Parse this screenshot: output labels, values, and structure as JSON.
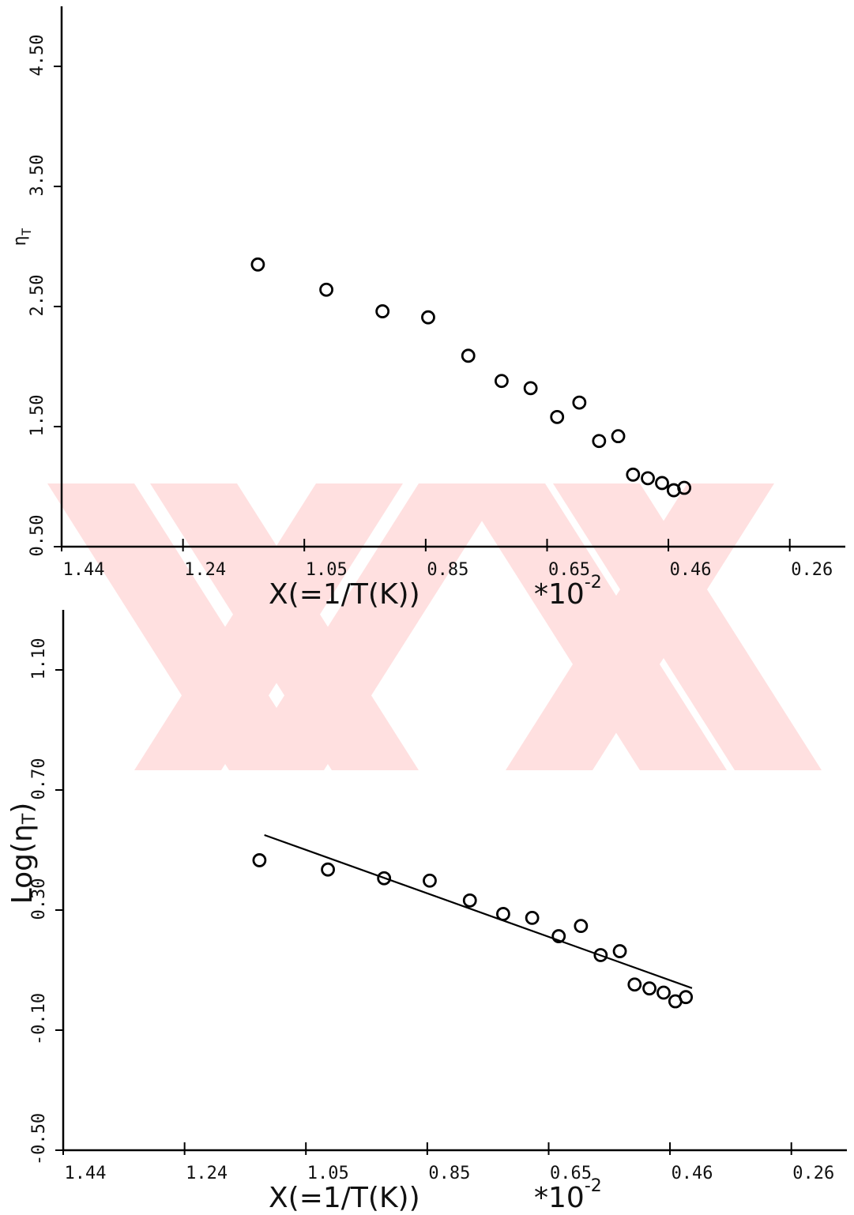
{
  "chart_data": [
    {
      "type": "scatter",
      "ylabel": "η",
      "ylabel_sub": "T",
      "xlabel": "X(=1/T(K))",
      "xscale": "*10",
      "xscale_exp": "-2",
      "xlim": [
        1.44,
        0.17
      ],
      "xticks": [
        1.44,
        {
          "value": 1.2433,
          "label": "1.24"
        },
        {
          "value": 1.0467,
          "label": "1.05"
        },
        0.85,
        {
          "value": 0.6533,
          "label": "0.65"
        },
        {
          "value": 0.4567,
          "label": "0.46"
        },
        0.26
      ],
      "ylim": [
        0.5,
        5.0
      ],
      "yticks": [
        {
          "value": 0.5,
          "label": "0.50"
        },
        {
          "value": 1.5,
          "label": "1.50"
        },
        {
          "value": 2.5,
          "label": "2.50"
        },
        {
          "value": 3.5,
          "label": "3.50"
        },
        {
          "value": 4.5,
          "label": "4.50"
        }
      ],
      "series": [
        {
          "type": "scatter",
          "color": "#000000",
          "x": [
            1.122,
            1.011,
            0.92,
            0.846,
            0.781,
            0.727,
            0.68,
            0.637,
            0.601,
            0.569,
            0.538,
            0.514,
            0.49,
            0.467,
            0.448,
            0.431
          ],
          "values": [
            2.85,
            2.64,
            2.46,
            2.41,
            2.09,
            1.88,
            1.82,
            1.58,
            1.7,
            1.38,
            1.42,
            1.1,
            1.07,
            1.03,
            0.97,
            0.99
          ]
        }
      ]
    },
    {
      "type": "scatter",
      "ylabel": "Log(η",
      "ylabel_sub": "T",
      "ylabel_end": ")",
      "xlabel": "X(=1/T(K))",
      "xscale": "*10",
      "xscale_exp": "-2",
      "xlim": [
        1.44,
        0.17
      ],
      "xticks": [
        1.44,
        {
          "value": 1.2433,
          "label": "1.24"
        },
        {
          "value": 1.0467,
          "label": "1.05"
        },
        0.85,
        {
          "value": 0.6533,
          "label": "0.65"
        },
        {
          "value": 0.4567,
          "label": "0.46"
        },
        0.26
      ],
      "ylim": [
        -0.5,
        1.3
      ],
      "yticks": [
        {
          "value": -0.5,
          "label": "-0.50"
        },
        {
          "value": -0.1,
          "label": "-0.10"
        },
        {
          "value": 0.3,
          "label": "0.30"
        },
        {
          "value": 0.7,
          "label": "0.70"
        },
        {
          "value": 1.1,
          "label": "1.10"
        }
      ],
      "series": [
        {
          "type": "scatter",
          "color": "#000000",
          "x": [
            1.122,
            1.011,
            0.92,
            0.846,
            0.781,
            0.727,
            0.68,
            0.637,
            0.601,
            0.569,
            0.538,
            0.514,
            0.49,
            0.467,
            0.448,
            0.431
          ],
          "values": [
            0.466,
            0.435,
            0.406,
            0.398,
            0.332,
            0.287,
            0.274,
            0.213,
            0.247,
            0.15,
            0.163,
            0.052,
            0.039,
            0.025,
            -0.004,
            0.01
          ]
        },
        {
          "type": "line",
          "color": "#000000",
          "x": [
            1.114,
            0.421
          ],
          "values": [
            0.55,
            0.04
          ]
        }
      ]
    }
  ]
}
